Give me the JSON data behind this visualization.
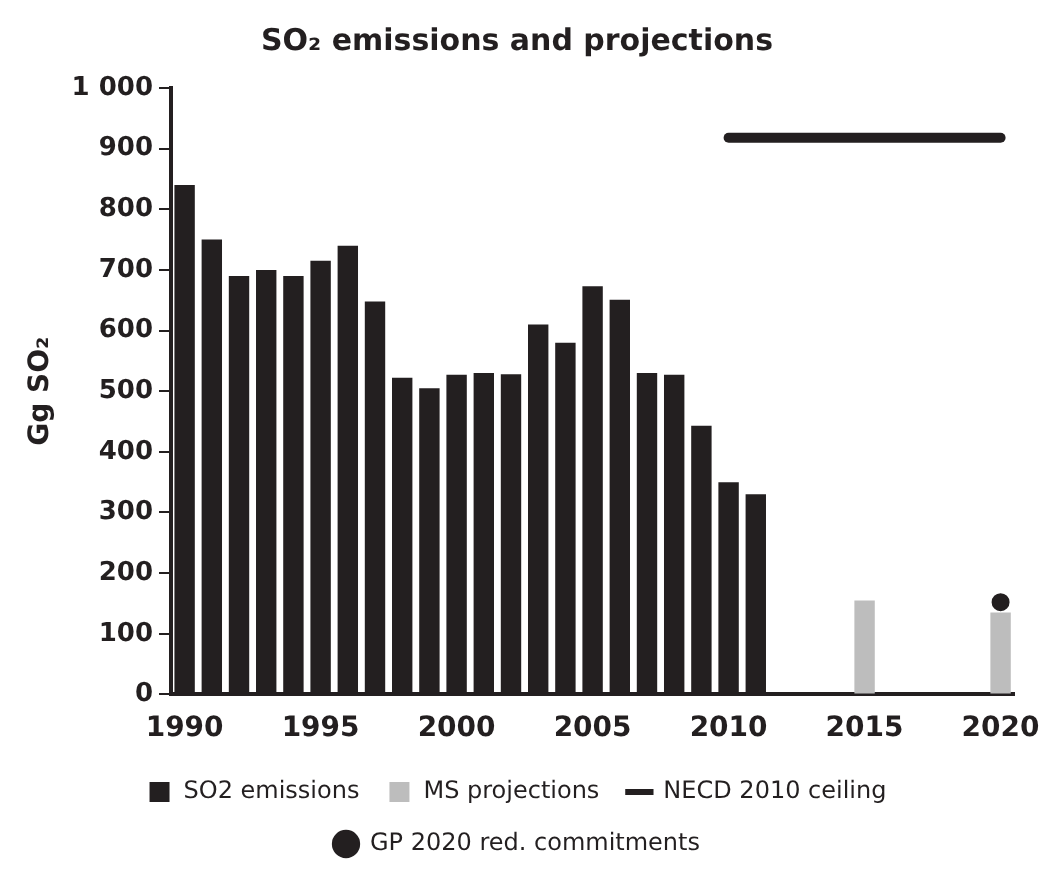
{
  "chart_data": {
    "type": "bar",
    "title": "SO₂ emissions and projections",
    "ylabel": "Gg SO₂",
    "categories": [
      "1990",
      null,
      null,
      null,
      null,
      "1995",
      null,
      null,
      null,
      null,
      "2000",
      null,
      null,
      null,
      null,
      "2005",
      null,
      null,
      null,
      null,
      "2010",
      null,
      null,
      null,
      null,
      "2015",
      null,
      null,
      null,
      null,
      "2020"
    ],
    "series": [
      {
        "name": "SO2 emissions",
        "color": "#231f20",
        "values": [
          840,
          750,
          690,
          700,
          690,
          715,
          740,
          648,
          522,
          505,
          527,
          530,
          528,
          610,
          580,
          673,
          651,
          530,
          527,
          443,
          350,
          330,
          null,
          null,
          null,
          null,
          null,
          null,
          null,
          null,
          null
        ]
      },
      {
        "name": "MS projections",
        "color": "#bdbdbd",
        "values": [
          null,
          null,
          null,
          null,
          null,
          null,
          null,
          null,
          null,
          null,
          null,
          null,
          null,
          null,
          null,
          null,
          null,
          null,
          null,
          null,
          null,
          null,
          null,
          null,
          null,
          155,
          null,
          null,
          null,
          null,
          135
        ]
      },
      {
        "name": "NECD 2010 ceiling",
        "type": "line",
        "color": "#231f20",
        "line_style": "solid",
        "values": [
          null,
          null,
          null,
          null,
          null,
          null,
          null,
          null,
          null,
          null,
          null,
          null,
          null,
          null,
          null,
          null,
          null,
          null,
          null,
          null,
          918,
          918,
          918,
          918,
          918,
          918,
          918,
          918,
          918,
          918,
          918
        ]
      },
      {
        "name": "GP 2020 red. commitments",
        "type": "scatter",
        "color": "#231f20",
        "marker": "circle",
        "values": [
          null,
          null,
          null,
          null,
          null,
          null,
          null,
          null,
          null,
          null,
          null,
          null,
          null,
          null,
          null,
          null,
          null,
          null,
          null,
          null,
          null,
          null,
          null,
          null,
          null,
          null,
          null,
          null,
          null,
          null,
          152
        ]
      }
    ],
    "ylim": [
      0,
      1000
    ],
    "yticks": [
      0,
      100,
      200,
      300,
      400,
      500,
      600,
      700,
      800,
      900,
      {
        "value": 1000,
        "label": "1 000"
      }
    ],
    "grid": false,
    "legend": "bottom"
  }
}
